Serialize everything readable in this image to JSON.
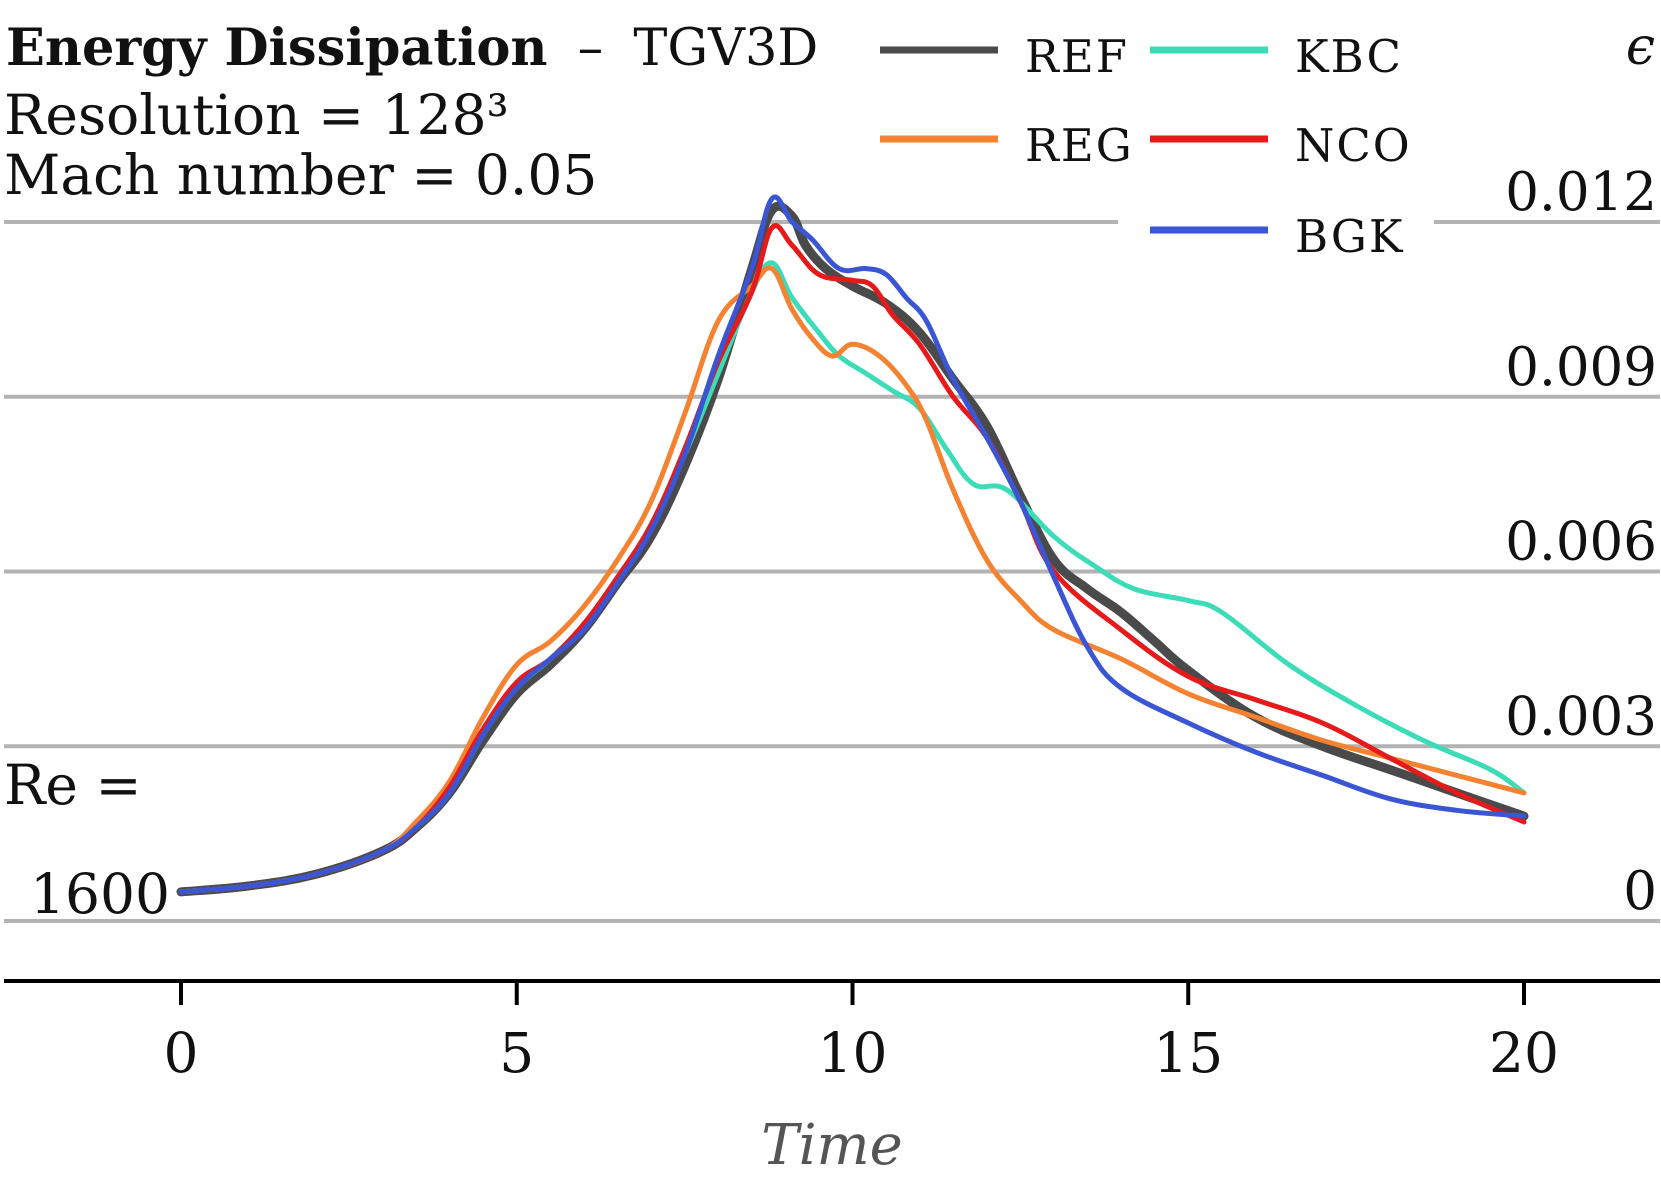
{
  "chart_data": {
    "type": "line",
    "title": "Energy Dissipation",
    "title_separator": "–",
    "subtitle": "TGV3D",
    "annotations": {
      "resolution": "Resolution = 128³",
      "mach": "Mach number = 0.05",
      "re_label": "Re =",
      "re_value": "1600"
    },
    "xlabel": "Time",
    "ylabel": "ϵ",
    "xlim": [
      -2.6,
      21.0
    ],
    "ylim": [
      -0.001,
      0.0132
    ],
    "x_ticks": [
      0,
      5,
      10,
      15,
      20
    ],
    "x_tick_labels": [
      "0",
      "5",
      "10",
      "15",
      "20"
    ],
    "y_ticks": [
      0,
      0.003,
      0.006,
      0.009,
      0.012
    ],
    "y_tick_labels": [
      "0",
      "0.003",
      "0.006",
      "0.009",
      "0.012"
    ],
    "grid": "horizontal",
    "legend_position": "top-right",
    "colors": {
      "grid": "#b3b3b3",
      "axis": "#000000",
      "text": "#111111",
      "xlabel": "#555555"
    },
    "series": [
      {
        "name": "REF",
        "color": "#4a4a4a",
        "x": [
          0,
          1,
          2,
          3,
          3.5,
          4,
          4.5,
          5,
          5.5,
          6,
          6.5,
          7,
          7.5,
          8,
          8.5,
          8.8,
          9.1,
          9.3,
          9.6,
          10,
          10.5,
          11,
          11.5,
          12,
          12.5,
          13,
          13.5,
          14,
          14.5,
          15,
          16,
          17,
          18,
          19,
          20
        ],
        "y": [
          0.0005,
          0.0006,
          0.0008,
          0.0012,
          0.0016,
          0.0022,
          0.0031,
          0.0039,
          0.0044,
          0.005,
          0.0058,
          0.0066,
          0.0078,
          0.0093,
          0.0112,
          0.0122,
          0.0121,
          0.0116,
          0.0112,
          0.0109,
          0.0106,
          0.0101,
          0.0093,
          0.0085,
          0.0073,
          0.0062,
          0.0057,
          0.0053,
          0.0048,
          0.0043,
          0.0035,
          0.003,
          0.0026,
          0.0022,
          0.0018
        ]
      },
      {
        "name": "KBC",
        "color": "#3ddcb8",
        "x": [
          0,
          1,
          2,
          3,
          3.5,
          4,
          4.5,
          5,
          5.5,
          6,
          6.5,
          7,
          7.5,
          8,
          8.5,
          8.8,
          9.1,
          9.5,
          9.8,
          10.2,
          10.6,
          11,
          11.4,
          11.8,
          12.3,
          13,
          13.6,
          14.2,
          15,
          15.5,
          16.5,
          17.5,
          18.5,
          19.5,
          20
        ],
        "y": [
          0.0005,
          0.0006,
          0.0008,
          0.0012,
          0.0016,
          0.0022,
          0.0032,
          0.004,
          0.0045,
          0.0051,
          0.0059,
          0.0068,
          0.008,
          0.0094,
          0.0108,
          0.0113,
          0.0107,
          0.0101,
          0.0097,
          0.0094,
          0.0091,
          0.0088,
          0.0081,
          0.0075,
          0.0074,
          0.0066,
          0.0061,
          0.0057,
          0.0055,
          0.0053,
          0.0044,
          0.0037,
          0.0031,
          0.0026,
          0.0022
        ]
      },
      {
        "name": "REG",
        "color": "#f58231",
        "x": [
          0,
          1,
          2,
          3,
          3.5,
          4,
          4.5,
          5,
          5.5,
          6,
          6.5,
          7,
          7.5,
          8,
          8.5,
          8.8,
          9.1,
          9.4,
          9.7,
          10,
          10.4,
          10.8,
          11.1,
          11.5,
          12,
          12.5,
          13,
          14,
          15,
          16,
          17,
          18,
          19,
          20
        ],
        "y": [
          0.0005,
          0.0006,
          0.0008,
          0.0012,
          0.0017,
          0.0024,
          0.0035,
          0.0044,
          0.0048,
          0.0054,
          0.0062,
          0.0072,
          0.0087,
          0.0103,
          0.0109,
          0.0112,
          0.0105,
          0.01,
          0.0097,
          0.0099,
          0.0097,
          0.0092,
          0.0086,
          0.0074,
          0.0062,
          0.0055,
          0.005,
          0.0045,
          0.0039,
          0.0035,
          0.0031,
          0.0028,
          0.0025,
          0.0022
        ]
      },
      {
        "name": "NCO",
        "color": "#e6191b",
        "x": [
          0,
          1,
          2,
          3,
          3.5,
          4,
          4.5,
          5,
          5.5,
          6,
          6.5,
          7,
          7.5,
          8,
          8.5,
          8.8,
          9.1,
          9.5,
          10,
          10.3,
          10.6,
          11,
          11.5,
          12,
          12.5,
          13,
          14,
          15,
          16,
          17,
          18,
          19,
          20
        ],
        "y": [
          0.0005,
          0.0006,
          0.0008,
          0.0012,
          0.0016,
          0.0023,
          0.0033,
          0.0041,
          0.0045,
          0.0051,
          0.0059,
          0.0068,
          0.0081,
          0.0096,
          0.0108,
          0.0119,
          0.0116,
          0.0111,
          0.011,
          0.0109,
          0.0104,
          0.0099,
          0.009,
          0.0083,
          0.0072,
          0.006,
          0.005,
          0.0042,
          0.0038,
          0.0034,
          0.0028,
          0.0022,
          0.0017
        ]
      },
      {
        "name": "BGK",
        "color": "#3a56d4",
        "x": [
          0,
          1,
          2,
          3,
          3.5,
          4,
          4.5,
          5,
          5.5,
          6,
          6.5,
          7,
          7.5,
          8,
          8.5,
          8.8,
          9.1,
          9.4,
          9.8,
          10.2,
          10.5,
          10.8,
          11.1,
          11.5,
          12,
          12.5,
          13,
          13.5,
          14,
          15,
          16,
          17,
          18,
          19,
          20
        ],
        "y": [
          0.0005,
          0.0006,
          0.0008,
          0.0012,
          0.0016,
          0.0022,
          0.0032,
          0.004,
          0.0045,
          0.005,
          0.0058,
          0.0067,
          0.008,
          0.0097,
          0.0112,
          0.0124,
          0.012,
          0.0117,
          0.0112,
          0.0112,
          0.0111,
          0.0107,
          0.0103,
          0.0093,
          0.0083,
          0.0072,
          0.0059,
          0.0047,
          0.004,
          0.0034,
          0.0029,
          0.0025,
          0.0021,
          0.0019,
          0.0018
        ]
      }
    ]
  }
}
